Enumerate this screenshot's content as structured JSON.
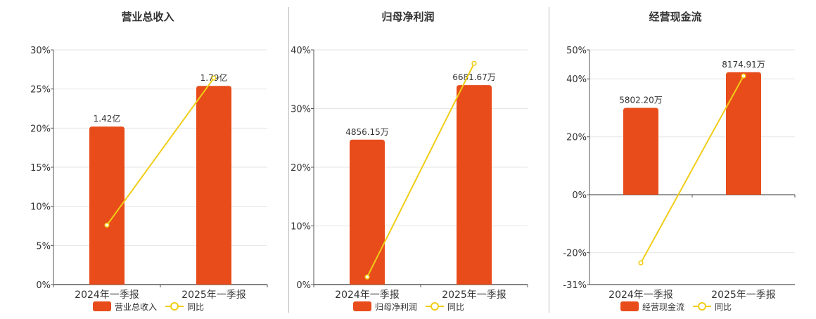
{
  "chart_data": [
    {
      "type": "bar",
      "title": "营业总收入",
      "categories": [
        "2024年一季报",
        "2025年一季报"
      ],
      "series": [
        {
          "name": "营业总收入",
          "type": "bar",
          "values": [
            20.2,
            25.4
          ],
          "labels": [
            "1.42亿",
            "1.79亿"
          ]
        },
        {
          "name": "同比",
          "type": "line",
          "values": [
            7.6,
            26.4
          ]
        }
      ],
      "ylim": [
        0,
        30
      ],
      "yticks": [
        0,
        5,
        10,
        15,
        20,
        25,
        30
      ],
      "ytick_labels": [
        "0%",
        "5%",
        "10%",
        "15%",
        "20%",
        "25%",
        "30%"
      ],
      "grid": true,
      "legend_position": "bottom"
    },
    {
      "type": "bar",
      "title": "归母净利润",
      "categories": [
        "2024年一季报",
        "2025年一季报"
      ],
      "series": [
        {
          "name": "归母净利润",
          "type": "bar",
          "values": [
            24.7,
            34.0
          ],
          "labels": [
            "4856.15万",
            "6681.67万"
          ]
        },
        {
          "name": "同比",
          "type": "line",
          "values": [
            1.3,
            37.7
          ]
        }
      ],
      "ylim": [
        0,
        40
      ],
      "yticks": [
        0,
        10,
        20,
        30,
        40
      ],
      "ytick_labels": [
        "0%",
        "10%",
        "20%",
        "30%",
        "40%"
      ],
      "grid": true,
      "legend_position": "bottom"
    },
    {
      "type": "bar",
      "title": "经营现金流",
      "categories": [
        "2024年一季报",
        "2025年一季报"
      ],
      "series": [
        {
          "name": "经营现金流",
          "type": "bar",
          "values": [
            30.0,
            42.3
          ],
          "labels": [
            "5802.20万",
            "8174.91万"
          ]
        },
        {
          "name": "同比",
          "type": "line",
          "values": [
            -23.5,
            41.0
          ]
        }
      ],
      "ylim": [
        -31,
        50
      ],
      "yticks": [
        -31,
        -20,
        0,
        20,
        40,
        50
      ],
      "ytick_labels": [
        "-31%",
        "-20%",
        "0%",
        "20%",
        "40%",
        "50%"
      ],
      "grid": true,
      "legend_position": "bottom"
    }
  ],
  "colors": {
    "bar": "#e84c1a",
    "line": "#f0cd17",
    "axis": "#555555",
    "grid": "#e6e6e6"
  }
}
